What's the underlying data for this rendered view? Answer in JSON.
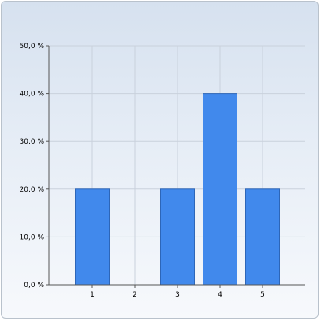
{
  "chart_data": {
    "type": "bar",
    "categories": [
      "1",
      "2",
      "3",
      "4",
      "5"
    ],
    "values": [
      20,
      0,
      20,
      40,
      20
    ],
    "ylim": [
      0,
      50
    ],
    "yticks": [
      0,
      10,
      20,
      30,
      40,
      50
    ],
    "ytick_labels": [
      "0,0 %",
      "10,0 %",
      "20,0 %",
      "30,0 %",
      "40,0 %",
      "50,0 %"
    ],
    "grid": true,
    "bar_color": "#4189ec",
    "bar_stroke": "#2d66b8",
    "grid_color": "#c9d1dc"
  }
}
